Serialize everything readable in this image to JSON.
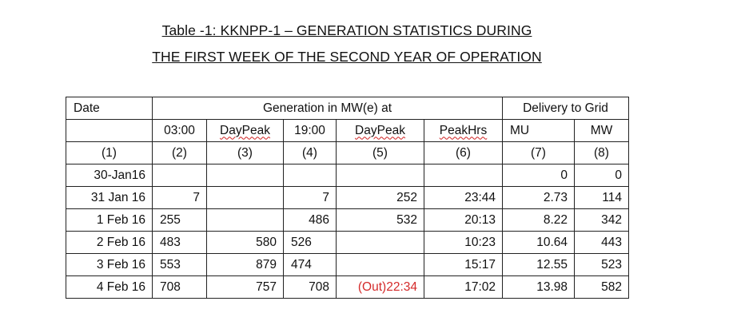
{
  "title_line1": "Table -1:  KKNPP-1 – GENERATION STATISTICS DURING",
  "title_line2": "THE FIRST WEEK OF THE SECOND YEAR OF OPERATION",
  "header": {
    "date": "Date",
    "generation_group": "Generation in MW(e) at",
    "delivery_group": "Delivery to Grid",
    "sub": [
      "03:00",
      "DayPeak",
      "19:00",
      "DayPeak",
      "PeakHrs",
      "MU",
      "MW"
    ],
    "nums": [
      "(1)",
      "(2)",
      "(3)",
      "(4)",
      "(5)",
      "(6)",
      "(7)",
      "(8)"
    ]
  },
  "rows": [
    {
      "date": "30-Jan16",
      "c2": "",
      "c3": "",
      "c4": "",
      "c5": "",
      "c6": "",
      "c7": "0",
      "c8": "0"
    },
    {
      "date": "31 Jan 16",
      "c2": "7",
      "c3": "",
      "c4": "7",
      "c5": "252",
      "c6": "23:44",
      "c7": "2.73",
      "c8": "114"
    },
    {
      "date": "1 Feb 16",
      "c2": "255",
      "c3": "",
      "c4": "486",
      "c5": "532",
      "c6": "20:13",
      "c7": "8.22",
      "c8": "342"
    },
    {
      "date": "2 Feb 16",
      "c2": "483",
      "c3": "580",
      "c4": "526",
      "c5": "",
      "c6": "10:23",
      "c7": "10.64",
      "c8": "443"
    },
    {
      "date": "3 Feb 16",
      "c2": "553",
      "c3": "879",
      "c4": "474",
      "c5": "",
      "c6": "15:17",
      "c7": "12.55",
      "c8": "523"
    },
    {
      "date": "4 Feb 16",
      "c2": "708",
      "c3": "757",
      "c4": "708",
      "c5": "(Out)22:34",
      "c6": "17:02",
      "c7": "13.98",
      "c8": "582"
    }
  ],
  "colors": {
    "highlight_text": "#d42a2a",
    "spellcheck_underline": "#d02020"
  }
}
